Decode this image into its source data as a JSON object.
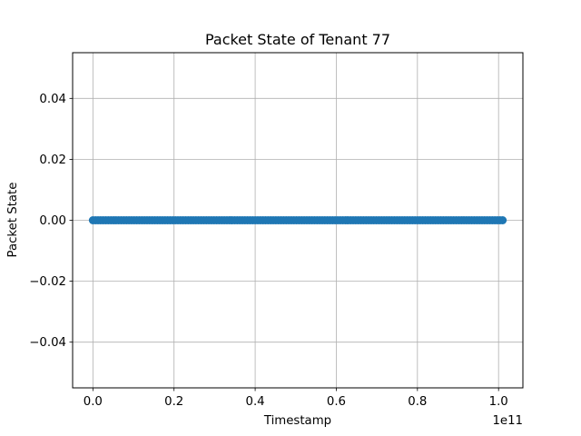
{
  "chart_data": {
    "type": "scatter",
    "title": "Packet State of Tenant 77",
    "xlabel": "Timestamp",
    "ylabel": "Packet State",
    "x_offset_label": "1e11",
    "xlim": [
      -0.05,
      1.06
    ],
    "ylim": [
      -0.055,
      0.055
    ],
    "x_ticks": [
      0.0,
      0.2,
      0.4,
      0.6,
      0.8,
      1.0
    ],
    "x_tick_labels": [
      "0.0",
      "0.2",
      "0.4",
      "0.6",
      "0.8",
      "1.0"
    ],
    "y_ticks": [
      0.04,
      0.02,
      0.0,
      -0.02,
      -0.04
    ],
    "y_tick_labels": [
      "0.04",
      "0.02",
      "0.00",
      "−0.02",
      "−0.04"
    ],
    "grid": true,
    "series": [
      {
        "color": "#1f77b4",
        "x_range": [
          0.0,
          1.01
        ],
        "y": 0.0
      }
    ]
  }
}
